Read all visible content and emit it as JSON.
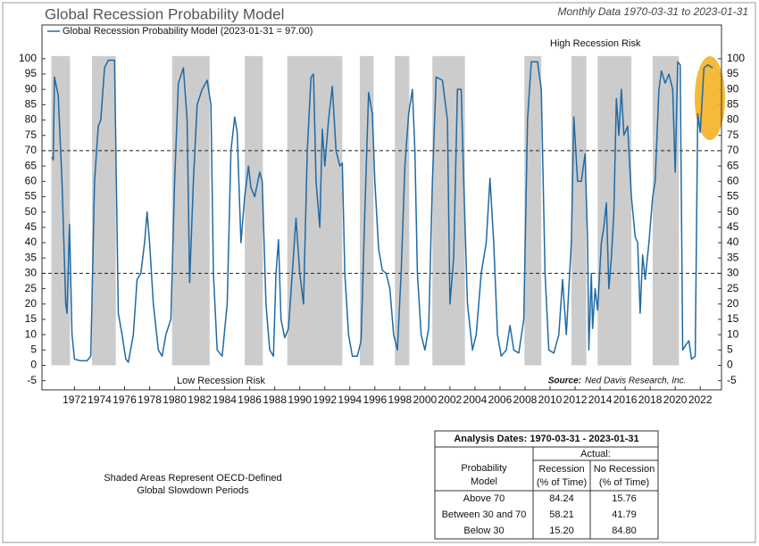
{
  "chart_data": {
    "type": "line",
    "title": "Global Recession Probability Model",
    "subtitle": "Monthly Data 1970-03-31 to 2023-01-31",
    "high_label": "High Recession Risk",
    "low_label": "Low Recession Risk",
    "source_label": "Source:",
    "source_text": "Ned Davis Research, Inc.",
    "xlim": [
      1969.4,
      2023.7
    ],
    "xticks": [
      1972,
      1974,
      1976,
      1978,
      1980,
      1982,
      1984,
      1986,
      1988,
      1990,
      1992,
      1994,
      1996,
      1998,
      2000,
      2002,
      2004,
      2006,
      2008,
      2010,
      2012,
      2014,
      2016,
      2018,
      2020,
      2022
    ],
    "ylim": [
      -8,
      111
    ],
    "yticks": [
      -5,
      0,
      5,
      10,
      15,
      20,
      25,
      30,
      35,
      40,
      45,
      50,
      55,
      60,
      65,
      70,
      75,
      80,
      85,
      90,
      95,
      100
    ],
    "thresholds": [
      70,
      30
    ],
    "shade_color": "#cccccc",
    "shaded_periods": [
      [
        1970.15,
        1971.64
      ],
      [
        1973.4,
        1975.3
      ],
      [
        1979.8,
        1982.8
      ],
      [
        1985.6,
        1987.05
      ],
      [
        1989.0,
        1993.4
      ],
      [
        1994.8,
        1995.9
      ],
      [
        1997.6,
        1998.75
      ],
      [
        2000.6,
        2003.2
      ],
      [
        2007.95,
        2009.3
      ],
      [
        2011.7,
        2012.9
      ],
      [
        2013.8,
        2016.5
      ],
      [
        2018.2,
        2020.3
      ]
    ],
    "series": [
      {
        "name": "Global Recession Probability Model (2023-01-31 = 97.00)",
        "color": "#1f6aa5",
        "x": [
          1970.2,
          1970.3,
          1970.4,
          1970.7,
          1971.0,
          1971.3,
          1971.4,
          1971.6,
          1971.8,
          1972.0,
          1972.5,
          1973.0,
          1973.3,
          1973.6,
          1973.9,
          1974.1,
          1974.4,
          1974.7,
          1975.2,
          1975.5,
          1975.8,
          1976.1,
          1976.3,
          1976.7,
          1977.0,
          1977.3,
          1977.6,
          1977.8,
          1978.0,
          1978.3,
          1978.7,
          1979.0,
          1979.3,
          1979.7,
          1980.0,
          1980.3,
          1980.7,
          1981.0,
          1981.2,
          1981.5,
          1981.8,
          1982.2,
          1982.6,
          1982.9,
          1983.1,
          1983.4,
          1983.8,
          1984.2,
          1984.5,
          1984.8,
          1985.0,
          1985.3,
          1985.6,
          1985.9,
          1986.1,
          1986.4,
          1986.8,
          1987.0,
          1987.3,
          1987.6,
          1987.9,
          1988.1,
          1988.3,
          1988.5,
          1988.8,
          1989.1,
          1989.4,
          1989.7,
          1990.0,
          1990.3,
          1990.6,
          1990.9,
          1991.1,
          1991.3,
          1991.6,
          1991.8,
          1992.0,
          1992.3,
          1992.6,
          1992.9,
          1993.2,
          1993.4,
          1993.6,
          1993.9,
          1994.2,
          1994.6,
          1994.9,
          1995.2,
          1995.5,
          1995.8,
          1996.0,
          1996.3,
          1996.6,
          1996.9,
          1997.2,
          1997.5,
          1997.8,
          1998.1,
          1998.4,
          1998.7,
          1999.0,
          1999.2,
          1999.4,
          1999.7,
          2000.0,
          2000.3,
          2000.6,
          2000.9,
          2001.4,
          2001.8,
          2002.0,
          2002.3,
          2002.6,
          2002.9,
          2003.1,
          2003.4,
          2003.8,
          2004.1,
          2004.5,
          2004.9,
          2005.2,
          2005.5,
          2005.8,
          2006.1,
          2006.5,
          2006.8,
          2007.1,
          2007.5,
          2007.9,
          2008.2,
          2008.5,
          2009.0,
          2009.3,
          2009.6,
          2009.9,
          2010.3,
          2010.7,
          2011.0,
          2011.3,
          2011.7,
          2011.9,
          2012.2,
          2012.5,
          2012.8,
          2013.0,
          2013.1,
          2013.3,
          2013.4,
          2013.6,
          2013.8,
          2014.1,
          2014.3,
          2014.5,
          2014.7,
          2014.9,
          2015.1,
          2015.3,
          2015.5,
          2015.7,
          2015.9,
          2016.2,
          2016.5,
          2016.8,
          2017.0,
          2017.2,
          2017.4,
          2017.6,
          2017.9,
          2018.2,
          2018.4,
          2018.7,
          2018.9,
          2019.2,
          2019.5,
          2019.8,
          2020.0,
          2020.2,
          2020.4,
          2020.6,
          2020.9,
          2021.1,
          2021.3,
          2021.6,
          2021.8,
          2022.0,
          2022.3,
          2022.6,
          2023.0
        ],
        "values": [
          68,
          67,
          94,
          88,
          60,
          20,
          17,
          46,
          10,
          2,
          1.5,
          1.5,
          3,
          60,
          78,
          80,
          97,
          99.5,
          99.5,
          17,
          10,
          2,
          1,
          10,
          28,
          30,
          40,
          50,
          40,
          20,
          5,
          3,
          10,
          15,
          60,
          92,
          97,
          80,
          27,
          60,
          85,
          90,
          93,
          85,
          30,
          5,
          3,
          20,
          70,
          81,
          76,
          40,
          55,
          65,
          58,
          55,
          63,
          60,
          20,
          5,
          3,
          30,
          41,
          15,
          9,
          12,
          30,
          48,
          30,
          20,
          70,
          94,
          95,
          60,
          45,
          77,
          65,
          80,
          91,
          70,
          65,
          66,
          30,
          10,
          3,
          3,
          8,
          50,
          89,
          82,
          60,
          38,
          31,
          30,
          25,
          10,
          5,
          30,
          65,
          82,
          90,
          70,
          30,
          10,
          5,
          12,
          60,
          94,
          93,
          80,
          20,
          35,
          90,
          90,
          60,
          20,
          5,
          10,
          30,
          40,
          61,
          40,
          10,
          3,
          5,
          13,
          5,
          4,
          15,
          80,
          99,
          99,
          90,
          30,
          5,
          4,
          10,
          28,
          10,
          40,
          81,
          60,
          60,
          69,
          40,
          5,
          30,
          12,
          25,
          18,
          40,
          45,
          53,
          25,
          35,
          50,
          87,
          75,
          90,
          75,
          78,
          55,
          42,
          40,
          17,
          36,
          28,
          40,
          55,
          60,
          90,
          96,
          92,
          95,
          90,
          63,
          99,
          98,
          5,
          7,
          8,
          2,
          3,
          82,
          76,
          97,
          98,
          97
        ]
      }
    ]
  },
  "note": [
    "Shaded Areas Represent OECD-Defined",
    "Global Slowdown Periods"
  ],
  "table": {
    "title": "Analysis Dates: 1970-03-31 - 2023-01-31",
    "group_header": "Actual:",
    "headers": [
      [
        "Probability",
        "Model"
      ],
      [
        "Recession",
        "(% of Time)"
      ],
      [
        "No Recession",
        "(% of Time)"
      ]
    ],
    "rows": [
      [
        "Above 70",
        "84.24",
        "15.76"
      ],
      [
        "Between 30 and 70",
        "58.21",
        "41.79"
      ],
      [
        "Below 30",
        "15.20",
        "84.80"
      ]
    ]
  }
}
